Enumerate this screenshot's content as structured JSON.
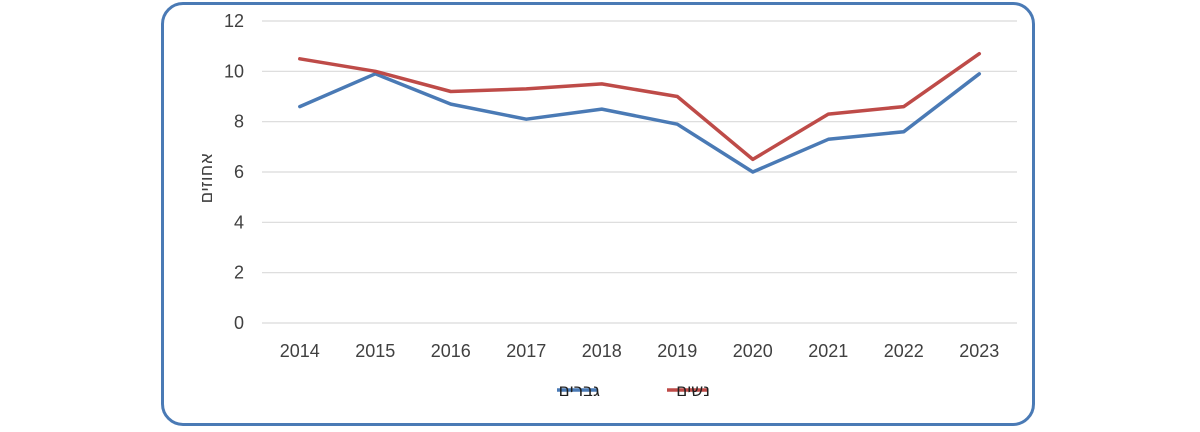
{
  "chart_data": {
    "type": "line",
    "categories": [
      "2014",
      "2015",
      "2016",
      "2017",
      "2018",
      "2019",
      "2020",
      "2021",
      "2022",
      "2023"
    ],
    "series": [
      {
        "name": "גברים",
        "color": "#4a7ab5",
        "values": [
          8.6,
          9.9,
          8.7,
          8.1,
          8.5,
          7.9,
          6.0,
          7.3,
          7.6,
          9.9
        ]
      },
      {
        "name": "נשים",
        "color": "#be4b48",
        "values": [
          10.5,
          10.0,
          9.2,
          9.3,
          9.5,
          9.0,
          6.5,
          8.3,
          8.6,
          10.7
        ]
      }
    ],
    "xlabel": "",
    "ylabel": "אחוזים",
    "ylim": [
      0,
      12
    ],
    "yticks": [
      0,
      2,
      4,
      6,
      8,
      10,
      12
    ],
    "grid": true,
    "legend": "bottom"
  }
}
